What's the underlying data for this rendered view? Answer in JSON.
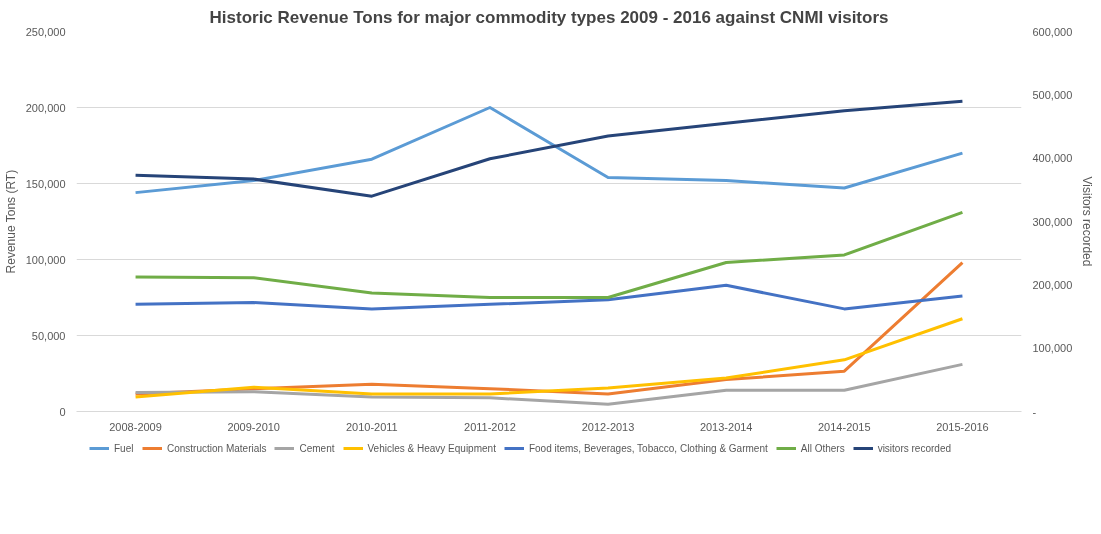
{
  "chart_data": {
    "type": "line",
    "title": "Historic Revenue Tons for major commodity types 2009 - 2016 against CNMI visitors",
    "ylabel": "Revenue Tons (RT)",
    "y2label": "Visitors recorded",
    "categories": [
      "2008-2009",
      "2009-2010",
      "2010-2011",
      "2011-2012",
      "2012-2013",
      "2013-2014",
      "2014-2015",
      "2015-2016"
    ],
    "series": [
      {
        "name": "Fuel",
        "color": "#5b9bd5",
        "values": [
          144000,
          152000,
          166000,
          200000,
          154000,
          152000,
          147000,
          170000
        ]
      },
      {
        "name": "Construction Materials",
        "color": "#ed7d31",
        "values": [
          11500,
          15000,
          18000,
          15000,
          11500,
          21000,
          26500,
          98000
        ]
      },
      {
        "name": "Cement",
        "color": "#a5a5a5",
        "values": [
          12500,
          13000,
          9500,
          9000,
          4800,
          14000,
          14000,
          31000
        ]
      },
      {
        "name": "Vehicles & Heavy Equipment",
        "color": "#ffc000",
        "values": [
          9500,
          16000,
          11500,
          11500,
          15500,
          22000,
          34000,
          61000
        ]
      },
      {
        "name": "Food items, Beverages, Tobacco, Clothing & Garment",
        "color": "#4472c4",
        "values": [
          70500,
          71700,
          67500,
          70500,
          73500,
          83000,
          67500,
          76000
        ]
      },
      {
        "name": "All Others",
        "color": "#70ad47",
        "values": [
          88500,
          88000,
          78000,
          75000,
          75000,
          98000,
          103000,
          131000
        ]
      },
      {
        "name": "visitors recorded",
        "color": "#264478",
        "axis": "y2",
        "values": [
          373000,
          367000,
          340000,
          399000,
          435000,
          455000,
          475000,
          490000
        ]
      }
    ],
    "ylim": [
      0,
      250000
    ],
    "yticks": [
      {
        "value": 0,
        "label": "0"
      },
      {
        "value": 50000,
        "label": "50,000"
      },
      {
        "value": 100000,
        "label": "100,000"
      },
      {
        "value": 150000,
        "label": "150,000"
      },
      {
        "value": 200000,
        "label": "200,000"
      },
      {
        "value": 250000,
        "label": "250,000"
      }
    ],
    "y2lim": [
      0,
      600000
    ],
    "y2ticks": [
      {
        "value": 0,
        "label": "-"
      },
      {
        "value": 100000,
        "label": "100,000"
      },
      {
        "value": 200000,
        "label": "200,000"
      },
      {
        "value": 300000,
        "label": "300,000"
      },
      {
        "value": 400000,
        "label": "400,000"
      },
      {
        "value": 500000,
        "label": "500,000"
      },
      {
        "value": 600000,
        "label": "600,000"
      }
    ],
    "grid": "y",
    "legend": "bottom",
    "marker": "none",
    "line_style": "solid"
  }
}
